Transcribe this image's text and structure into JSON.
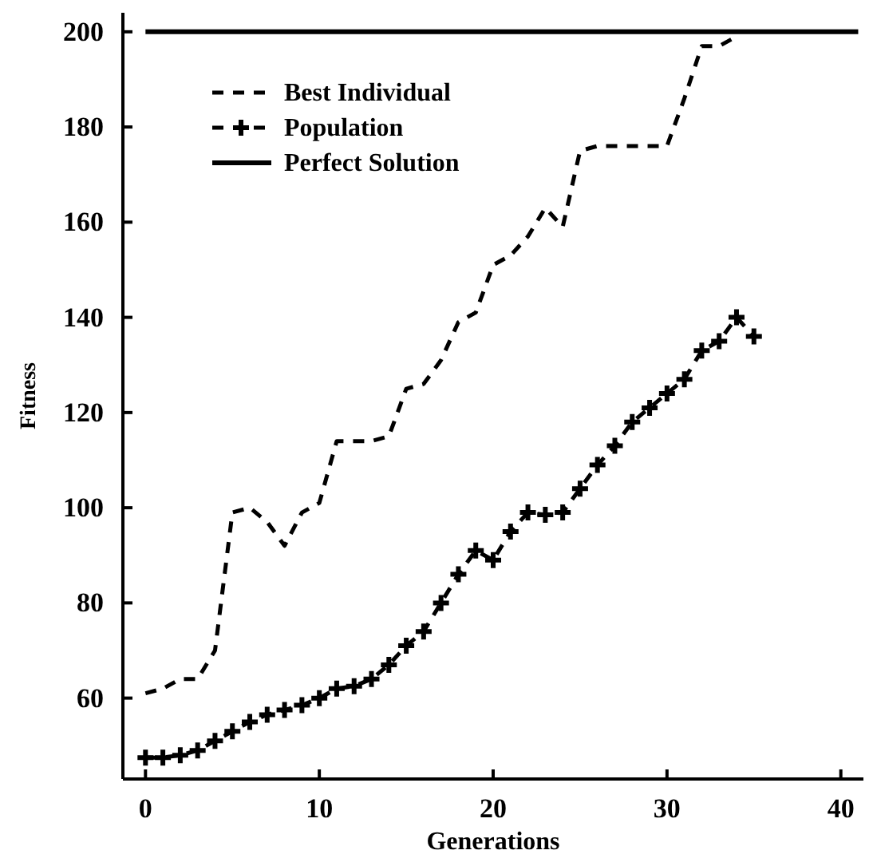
{
  "chart_data": {
    "type": "line",
    "xlabel": "Generations",
    "ylabel": "Fitness",
    "xlim": [
      -1.3,
      41.3
    ],
    "ylim": [
      43,
      204
    ],
    "xticks": [
      0,
      10,
      20,
      30,
      40
    ],
    "yticks": [
      60,
      80,
      100,
      120,
      140,
      160,
      180,
      200
    ],
    "legend": "top left",
    "grid": false,
    "series": [
      {
        "name": "Best Individual",
        "color": "#000000",
        "line_style": "dashed",
        "marker": "none",
        "x": [
          0,
          1,
          2,
          3,
          4,
          5,
          6,
          7,
          8,
          9,
          10,
          11,
          12,
          13,
          14,
          15,
          16,
          17,
          18,
          19,
          20,
          21,
          22,
          23,
          24,
          25,
          26,
          27,
          28,
          29,
          30,
          31,
          32,
          33,
          34
        ],
        "values": [
          61,
          62,
          64,
          64,
          70,
          99,
          100,
          97,
          92,
          99,
          101,
          114,
          114,
          114,
          115,
          125,
          126,
          131,
          139,
          141,
          151,
          153,
          157,
          163,
          159,
          175,
          176,
          176,
          176,
          176,
          176,
          186,
          197,
          197,
          199
        ]
      },
      {
        "name": "Population",
        "color": "#000000",
        "line_style": "dashed",
        "marker": "cross",
        "x": [
          0,
          1,
          2,
          3,
          4,
          5,
          6,
          7,
          8,
          9,
          10,
          11,
          12,
          13,
          14,
          15,
          16,
          17,
          18,
          19,
          20,
          21,
          22,
          23,
          24,
          25,
          26,
          27,
          28,
          29,
          30,
          31,
          32,
          33,
          34,
          35
        ],
        "values": [
          47.5,
          47.5,
          48,
          49,
          51,
          53,
          55,
          56.5,
          57.5,
          58.5,
          60,
          62,
          62.5,
          64,
          67,
          71,
          74,
          80,
          86,
          91,
          89,
          95,
          99,
          98.5,
          99,
          104,
          109,
          113,
          118,
          121,
          124,
          127,
          133,
          135,
          140,
          136
        ]
      },
      {
        "name": "Perfect Solution",
        "color": "#000000",
        "line_style": "solid",
        "marker": "none",
        "x": [
          0,
          41
        ],
        "values": [
          200,
          200
        ]
      }
    ]
  }
}
